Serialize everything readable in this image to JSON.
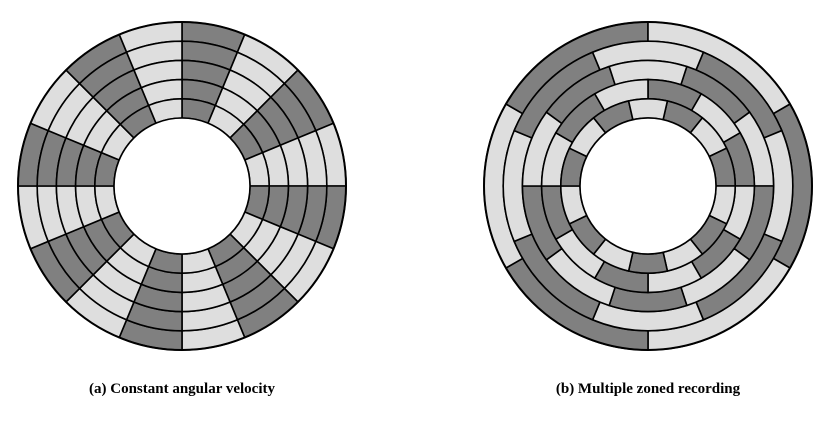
{
  "figure": {
    "captions": {
      "a": "(a) Constant angular velocity",
      "b": "(b) Multiple zoned recording"
    }
  },
  "colors": {
    "dark": "#808080",
    "light": "#dedede",
    "line": "#000000",
    "background": "#ffffff"
  },
  "disks": [
    {
      "id": "a",
      "name": "Constant angular velocity",
      "track_count": 5,
      "tracks": [
        {
          "sectors": 16,
          "offset": 0
        },
        {
          "sectors": 16,
          "offset": 0
        },
        {
          "sectors": 16,
          "offset": 0
        },
        {
          "sectors": 16,
          "offset": 0
        },
        {
          "sectors": 16,
          "offset": 0
        }
      ]
    },
    {
      "id": "b",
      "name": "Multiple zoned recording",
      "track_count": 5,
      "tracks": [
        {
          "sectors": 6,
          "offset": 1
        },
        {
          "sectors": 8,
          "offset": 0.5
        },
        {
          "sectors": 10,
          "offset": 0.5
        },
        {
          "sectors": 12,
          "offset": 0
        },
        {
          "sectors": 14,
          "offset": 0.5
        }
      ]
    }
  ]
}
